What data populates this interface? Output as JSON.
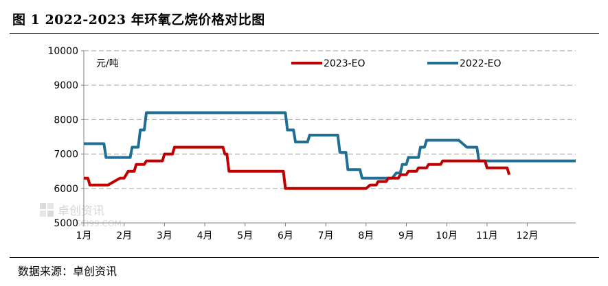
{
  "header": {
    "title": "图 1 2022-2023 年环氧乙烷价格对比图"
  },
  "footer": {
    "source": "数据来源：卓创资讯"
  },
  "watermark": {
    "brand": "卓创资讯",
    "domain": "SCI99.COM"
  },
  "chart_data": {
    "type": "line",
    "title": "",
    "unit_label": "元/吨",
    "xlabel": "",
    "ylabel": "",
    "ylim": [
      5000,
      10000
    ],
    "yticks": [
      5000,
      6000,
      7000,
      8000,
      9000,
      10000
    ],
    "xlim": [
      0,
      12.2
    ],
    "xticks": [
      "1月",
      "2月",
      "3月",
      "4月",
      "5月",
      "6月",
      "7月",
      "8月",
      "9月",
      "10月",
      "11月",
      "12月"
    ],
    "grid": "horizontal-dashed",
    "legend": "top",
    "series": [
      {
        "name": "2023-EO",
        "color": "#C00000",
        "points": [
          [
            0,
            6300
          ],
          [
            0.1,
            6300
          ],
          [
            0.15,
            6100
          ],
          [
            0.6,
            6100
          ],
          [
            0.75,
            6200
          ],
          [
            0.9,
            6300
          ],
          [
            1.0,
            6300
          ],
          [
            1.1,
            6500
          ],
          [
            1.25,
            6500
          ],
          [
            1.3,
            6700
          ],
          [
            1.5,
            6700
          ],
          [
            1.55,
            6800
          ],
          [
            1.95,
            6800
          ],
          [
            2.0,
            7000
          ],
          [
            2.2,
            7000
          ],
          [
            2.25,
            7200
          ],
          [
            3.45,
            7200
          ],
          [
            3.5,
            7000
          ],
          [
            3.55,
            7000
          ],
          [
            3.6,
            6500
          ],
          [
            4.95,
            6500
          ],
          [
            5.0,
            6000
          ],
          [
            7.0,
            6000
          ],
          [
            7.1,
            6100
          ],
          [
            7.25,
            6100
          ],
          [
            7.3,
            6200
          ],
          [
            7.5,
            6200
          ],
          [
            7.55,
            6300
          ],
          [
            7.8,
            6300
          ],
          [
            7.85,
            6400
          ],
          [
            8.0,
            6400
          ],
          [
            8.05,
            6500
          ],
          [
            8.25,
            6500
          ],
          [
            8.3,
            6600
          ],
          [
            8.5,
            6600
          ],
          [
            8.55,
            6700
          ],
          [
            8.85,
            6700
          ],
          [
            8.9,
            6800
          ],
          [
            9.95,
            6800
          ],
          [
            10.0,
            6600
          ],
          [
            10.5,
            6600
          ],
          [
            10.55,
            6400
          ]
        ]
      },
      {
        "name": "2022-EO",
        "color": "#1F6E94",
        "points": [
          [
            0,
            7300
          ],
          [
            0.5,
            7300
          ],
          [
            0.55,
            6900
          ],
          [
            1.15,
            6900
          ],
          [
            1.2,
            7200
          ],
          [
            1.35,
            7200
          ],
          [
            1.4,
            7700
          ],
          [
            1.5,
            7700
          ],
          [
            1.55,
            8200
          ],
          [
            5.0,
            8200
          ],
          [
            5.05,
            7700
          ],
          [
            5.2,
            7700
          ],
          [
            5.25,
            7350
          ],
          [
            5.55,
            7350
          ],
          [
            5.6,
            7550
          ],
          [
            6.3,
            7550
          ],
          [
            6.35,
            7050
          ],
          [
            6.5,
            7050
          ],
          [
            6.55,
            6550
          ],
          [
            6.85,
            6550
          ],
          [
            6.9,
            6300
          ],
          [
            7.65,
            6300
          ],
          [
            7.75,
            6450
          ],
          [
            7.85,
            6450
          ],
          [
            7.9,
            6700
          ],
          [
            8.0,
            6700
          ],
          [
            8.05,
            6900
          ],
          [
            8.3,
            6900
          ],
          [
            8.35,
            7200
          ],
          [
            8.45,
            7200
          ],
          [
            8.5,
            7400
          ],
          [
            9.3,
            7400
          ],
          [
            9.5,
            7200
          ],
          [
            9.75,
            7200
          ],
          [
            9.8,
            6800
          ],
          [
            12.2,
            6800
          ]
        ]
      }
    ]
  }
}
